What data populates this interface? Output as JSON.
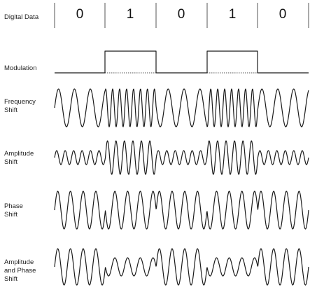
{
  "labels": {
    "digital_data": "Digital Data",
    "modulation": "Modulation",
    "frequency_shift": [
      "Frequency",
      "Shift"
    ],
    "amplitude_shift": [
      "Amplitude",
      "Shift"
    ],
    "phase_shift": [
      "Phase",
      "Shift"
    ],
    "amplitude_and_phase_shift": [
      "Amplitude",
      "and Phase",
      "Shift"
    ]
  },
  "bits": [
    "0",
    "1",
    "0",
    "1",
    "0"
  ],
  "colors": {
    "wave": "#1a1a1a",
    "text": "#222222",
    "divider": "#555555"
  }
}
